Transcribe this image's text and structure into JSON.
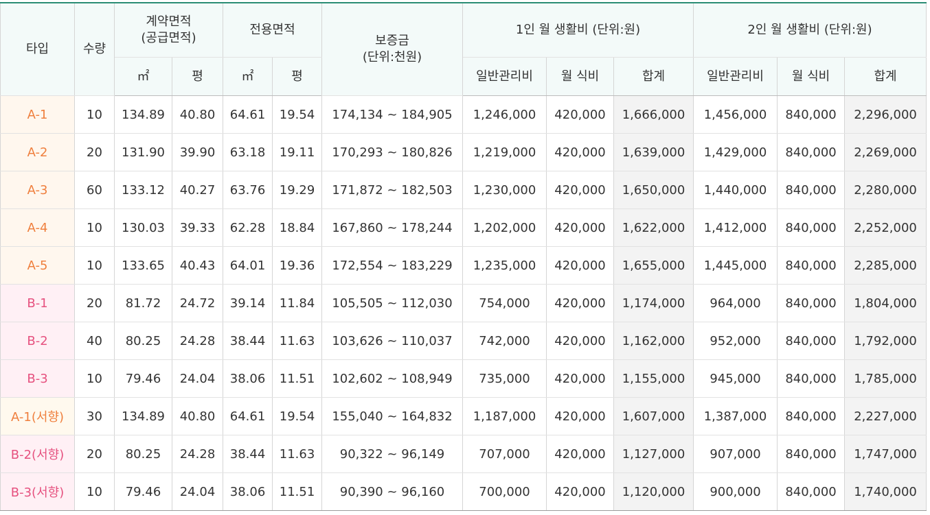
{
  "colors": {
    "top_border": "#2a8c74",
    "header_bg": "#f3faf9",
    "type_a_text": "#ef7f3d",
    "type_b_text": "#e6517f",
    "total_bg": "#f3f3f3"
  },
  "header": {
    "type": "타입",
    "qty": "수량",
    "contract_area": "계약면적\n(공급면적)",
    "exclusive_area": "전용면적",
    "deposit": "보증금\n(단위:천원)",
    "cost_1p": "1인 월 생활비 (단위:원)",
    "cost_2p": "2인 월 생활비 (단위:원)",
    "m2": "㎡",
    "pyeong": "평",
    "mgmt": "일반관리비",
    "meal": "월 식비",
    "total": "합계"
  },
  "rows": [
    {
      "group": "a",
      "type": "A-1",
      "qty": "10",
      "c_m2": "134.89",
      "c_py": "40.80",
      "e_m2": "64.61",
      "e_py": "19.54",
      "deposit": "174,134 ~ 184,905",
      "m1": "1,246,000",
      "f1": "420,000",
      "t1": "1,666,000",
      "m2": "1,456,000",
      "f2": "840,000",
      "t2": "2,296,000"
    },
    {
      "group": "a",
      "type": "A-2",
      "qty": "20",
      "c_m2": "131.90",
      "c_py": "39.90",
      "e_m2": "63.18",
      "e_py": "19.11",
      "deposit": "170,293 ~ 180,826",
      "m1": "1,219,000",
      "f1": "420,000",
      "t1": "1,639,000",
      "m2": "1,429,000",
      "f2": "840,000",
      "t2": "2,269,000"
    },
    {
      "group": "a",
      "type": "A-3",
      "qty": "60",
      "c_m2": "133.12",
      "c_py": "40.27",
      "e_m2": "63.76",
      "e_py": "19.29",
      "deposit": "171,872 ~ 182,503",
      "m1": "1,230,000",
      "f1": "420,000",
      "t1": "1,650,000",
      "m2": "1,440,000",
      "f2": "840,000",
      "t2": "2,280,000"
    },
    {
      "group": "a",
      "type": "A-4",
      "qty": "10",
      "c_m2": "130.03",
      "c_py": "39.33",
      "e_m2": "62.28",
      "e_py": "18.84",
      "deposit": "167,860 ~ 178,244",
      "m1": "1,202,000",
      "f1": "420,000",
      "t1": "1,622,000",
      "m2": "1,412,000",
      "f2": "840,000",
      "t2": "2,252,000"
    },
    {
      "group": "a",
      "type": "A-5",
      "qty": "10",
      "c_m2": "133.65",
      "c_py": "40.43",
      "e_m2": "64.01",
      "e_py": "19.36",
      "deposit": "172,554 ~ 183,229",
      "m1": "1,235,000",
      "f1": "420,000",
      "t1": "1,655,000",
      "m2": "1,445,000",
      "f2": "840,000",
      "t2": "2,285,000"
    },
    {
      "group": "b",
      "type": "B-1",
      "qty": "20",
      "c_m2": "81.72",
      "c_py": "24.72",
      "e_m2": "39.14",
      "e_py": "11.84",
      "deposit": "105,505 ~ 112,030",
      "m1": "754,000",
      "f1": "420,000",
      "t1": "1,174,000",
      "m2": "964,000",
      "f2": "840,000",
      "t2": "1,804,000"
    },
    {
      "group": "b",
      "type": "B-2",
      "qty": "40",
      "c_m2": "80.25",
      "c_py": "24.28",
      "e_m2": "38.44",
      "e_py": "11.63",
      "deposit": "103,626 ~ 110,037",
      "m1": "742,000",
      "f1": "420,000",
      "t1": "1,162,000",
      "m2": "952,000",
      "f2": "840,000",
      "t2": "1,792,000"
    },
    {
      "group": "b",
      "type": "B-3",
      "qty": "10",
      "c_m2": "79.46",
      "c_py": "24.04",
      "e_m2": "38.06",
      "e_py": "11.51",
      "deposit": "102,602 ~ 108,949",
      "m1": "735,000",
      "f1": "420,000",
      "t1": "1,155,000",
      "m2": "945,000",
      "f2": "840,000",
      "t2": "1,785,000"
    },
    {
      "group": "c",
      "type": "A-1(서향)",
      "qty": "30",
      "c_m2": "134.89",
      "c_py": "40.80",
      "e_m2": "64.61",
      "e_py": "19.54",
      "deposit": "155,040 ~ 164,832",
      "m1": "1,187,000",
      "f1": "420,000",
      "t1": "1,607,000",
      "m2": "1,387,000",
      "f2": "840,000",
      "t2": "2,227,000"
    },
    {
      "group": "d",
      "type": "B-2(서향)",
      "qty": "20",
      "c_m2": "80.25",
      "c_py": "24.28",
      "e_m2": "38.44",
      "e_py": "11.63",
      "deposit": "90,322 ~ 96,149",
      "m1": "707,000",
      "f1": "420,000",
      "t1": "1,127,000",
      "m2": "907,000",
      "f2": "840,000",
      "t2": "1,747,000"
    },
    {
      "group": "d",
      "type": "B-3(서향)",
      "qty": "10",
      "c_m2": "79.46",
      "c_py": "24.04",
      "e_m2": "38.06",
      "e_py": "11.51",
      "deposit": "90,390 ~ 96,160",
      "m1": "700,000",
      "f1": "420,000",
      "t1": "1,120,000",
      "m2": "900,000",
      "f2": "840,000",
      "t2": "1,740,000"
    }
  ]
}
